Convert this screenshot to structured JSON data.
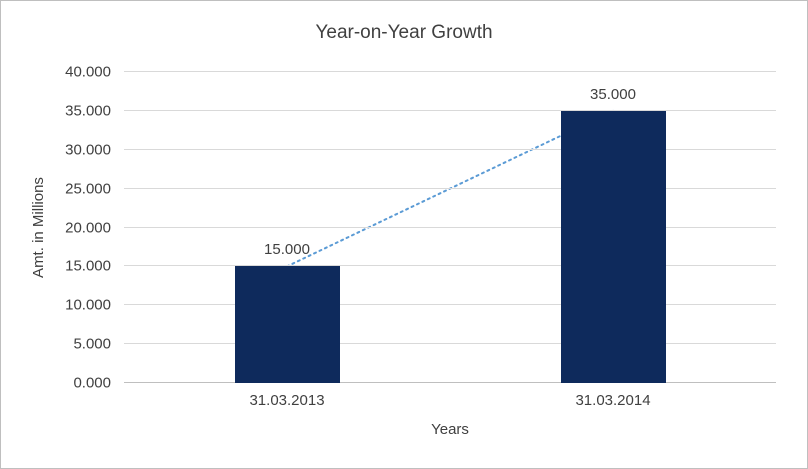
{
  "chart_data": {
    "type": "bar",
    "title": "Year-on-Year Growth",
    "xlabel": "Years",
    "ylabel": "Amt. in Millions",
    "categories": [
      "31.03.2013",
      "31.03.2014"
    ],
    "values": [
      15.0,
      35.0
    ],
    "value_labels": [
      "15.000",
      "35.000"
    ],
    "ylim": [
      0,
      40
    ],
    "ytick_step": 5,
    "ytick_labels": [
      "0.000",
      "5.000",
      "10.000",
      "15.000",
      "20.000",
      "25.000",
      "30.000",
      "35.000",
      "40.000"
    ],
    "grid": true,
    "legend": "none",
    "bar_color": "#0E2A5C",
    "trendline_color": "#5B9BD5",
    "trendline_style": "dotted",
    "text_color": "#404040",
    "gridline_color": "#D9D9D9",
    "frame_border_color": "#BFBFBF"
  }
}
